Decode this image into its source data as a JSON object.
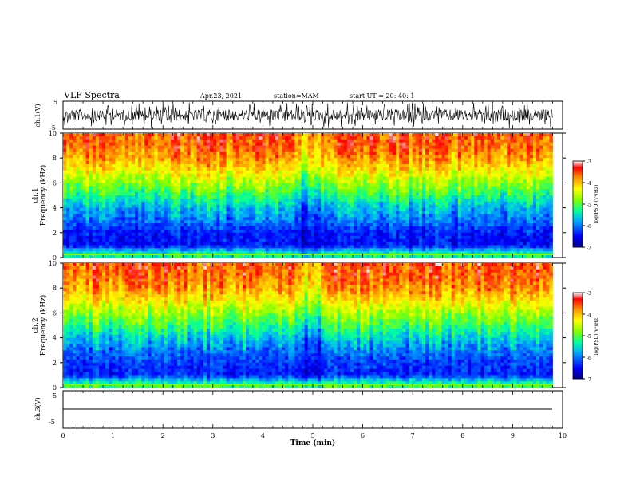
{
  "header": {
    "title": "VLF Spectra",
    "date": "Apr.23, 2021",
    "station": "station=MAM",
    "start": "start  UT  =   20: 40: 1"
  },
  "panels": {
    "ch1_wave": {
      "ylabel": "ch.1(V)",
      "ylim": [
        -5,
        5
      ],
      "ticks": [
        "5",
        "-5"
      ]
    },
    "ch1_spec": {
      "ylabel_line1": "ch.1",
      "ylabel_line2": "Frequency  (kHz)"
    },
    "ch2_spec": {
      "ylabel_line1": "ch.2",
      "ylabel_line2": "Frequency  (kHz)"
    },
    "ch3_wave": {
      "ylabel": "ch.3(V)",
      "ylim": [
        -5,
        5
      ],
      "ticks": [
        "5",
        "-5"
      ]
    }
  },
  "colorbar": {
    "label": "log(PSD)(V²/Hz)",
    "ticks": [
      "-3",
      "-4",
      "-5",
      "-6",
      "-7"
    ],
    "range": [
      -7,
      -3
    ],
    "colors": [
      "#000080",
      "#0000ff",
      "#00aaff",
      "#00ff88",
      "#88ff00",
      "#ffff00",
      "#ff8800",
      "#ff0000",
      "#ffffff"
    ]
  },
  "chart_data": {
    "type": "heatmap",
    "title": "VLF Spectra",
    "xlabel": "Time  (min)",
    "ylabel": "Frequency  (kHz)",
    "xlim": [
      0,
      10
    ],
    "ylim": [
      0,
      10
    ],
    "x_ticks": [
      "0",
      "1",
      "2",
      "3",
      "4",
      "5",
      "6",
      "7",
      "8",
      "9",
      "10"
    ],
    "y_ticks": [
      "0",
      "2",
      "4",
      "6",
      "8",
      "10"
    ],
    "data_end_min": 9.8,
    "zlim": [
      -7,
      -3
    ],
    "series": [
      {
        "name": "ch.1",
        "freq_profile_khz": [
          0,
          0.5,
          1,
          2,
          3,
          4,
          5,
          6,
          7,
          8,
          9,
          10
        ],
        "log_psd_profile": [
          -5.2,
          -5.6,
          -6.5,
          -6.4,
          -6.0,
          -5.7,
          -5.2,
          -4.7,
          -4.2,
          -3.8,
          -3.6,
          -3.5
        ]
      },
      {
        "name": "ch.2",
        "freq_profile_khz": [
          0,
          0.5,
          1,
          2,
          3,
          4,
          5,
          6,
          7,
          8,
          9,
          10
        ],
        "log_psd_profile": [
          -5.0,
          -5.5,
          -6.4,
          -6.3,
          -6.0,
          -5.6,
          -5.1,
          -4.7,
          -4.2,
          -3.8,
          -3.6,
          -3.5
        ]
      }
    ]
  }
}
